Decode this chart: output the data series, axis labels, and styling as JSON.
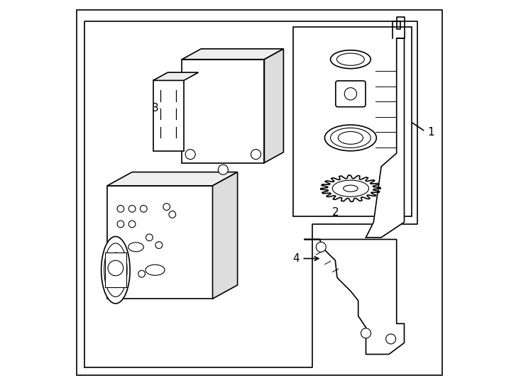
{
  "background_color": "#ffffff",
  "line_color": "#000000",
  "line_width": 1.2,
  "fig_width": 7.34,
  "fig_height": 5.4,
  "label_fontsize": 11
}
